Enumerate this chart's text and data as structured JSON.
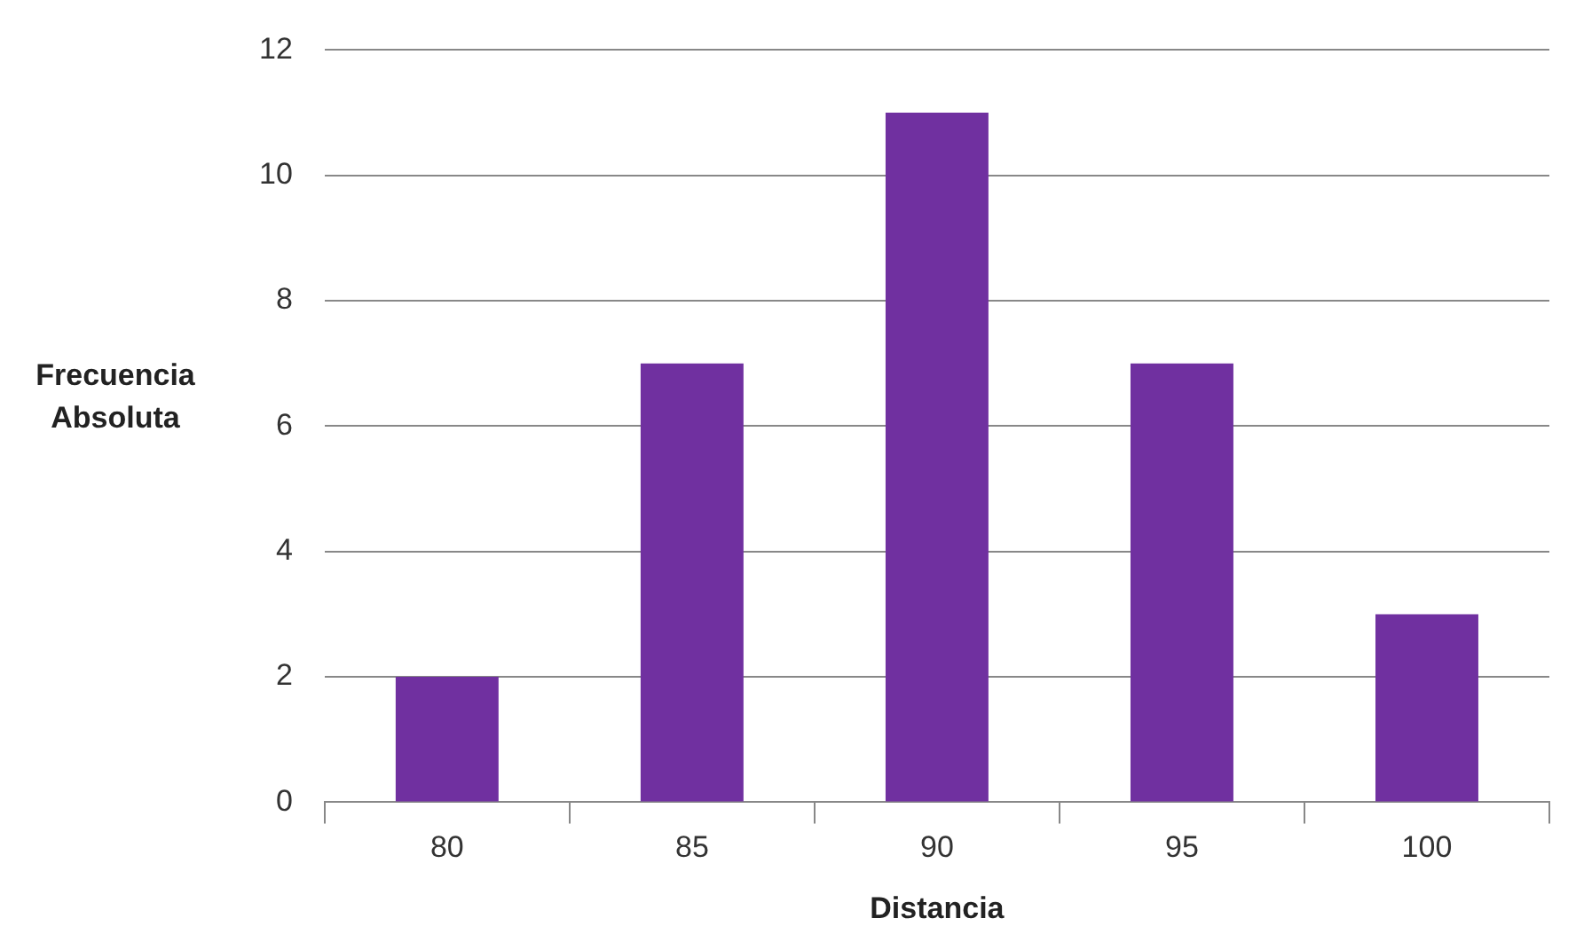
{
  "chart_data": {
    "type": "bar",
    "xlabel": "Distancia",
    "ylabel": "Frecuencia Absoluta",
    "categories": [
      "80",
      "85",
      "90",
      "95",
      "100"
    ],
    "values": [
      2,
      7,
      11,
      7,
      3
    ],
    "color": "#7030a0",
    "ylim": [
      0,
      12
    ],
    "yticks": [
      0,
      2,
      4,
      6,
      8,
      10,
      12
    ],
    "grid": "y"
  }
}
